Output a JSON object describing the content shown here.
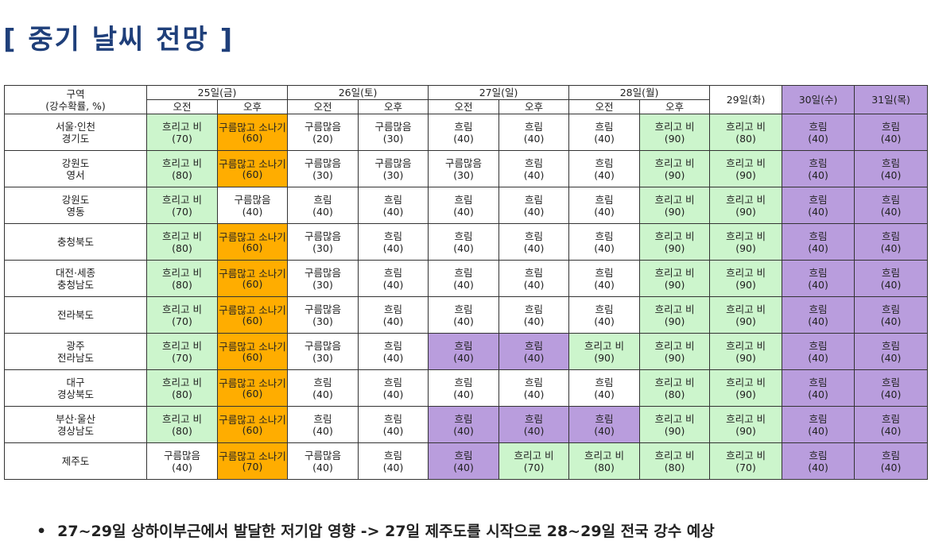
{
  "page_title": "[ 중기 날씨 전망 ]",
  "table": {
    "corner_label_line1": "구역",
    "corner_label_line2": "(강수확률, %)",
    "days": [
      {
        "label": "25일(금)",
        "split": true,
        "style": "white"
      },
      {
        "label": "26일(토)",
        "split": true,
        "style": "white"
      },
      {
        "label": "27일(일)",
        "split": true,
        "style": "white"
      },
      {
        "label": "28일(월)",
        "split": true,
        "style": "white"
      },
      {
        "label": "29일(화)",
        "split": false,
        "style": "white"
      },
      {
        "label": "30일(수)",
        "split": false,
        "style": "purple"
      },
      {
        "label": "31일(목)",
        "split": false,
        "style": "purple"
      }
    ],
    "am_label": "오전",
    "pm_label": "오후",
    "rows": [
      {
        "region": [
          "서울·인천",
          "경기도"
        ],
        "cells": [
          {
            "t": "흐리고 비",
            "p": "(70)",
            "c": "green"
          },
          {
            "t": "구름많고 소나기",
            "p": "(60)",
            "c": "orange"
          },
          {
            "t": "구름많음",
            "p": "(20)",
            "c": "white"
          },
          {
            "t": "구름많음",
            "p": "(30)",
            "c": "white"
          },
          {
            "t": "흐림",
            "p": "(40)",
            "c": "white"
          },
          {
            "t": "흐림",
            "p": "(40)",
            "c": "white"
          },
          {
            "t": "흐림",
            "p": "(40)",
            "c": "white"
          },
          {
            "t": "흐리고 비",
            "p": "(90)",
            "c": "green"
          },
          {
            "t": "흐리고 비",
            "p": "(80)",
            "c": "green"
          },
          {
            "t": "흐림",
            "p": "(40)",
            "c": "purple"
          },
          {
            "t": "흐림",
            "p": "(40)",
            "c": "purple"
          }
        ]
      },
      {
        "region": [
          "강원도",
          "영서"
        ],
        "cells": [
          {
            "t": "흐리고 비",
            "p": "(80)",
            "c": "green"
          },
          {
            "t": "구름많고 소나기",
            "p": "(60)",
            "c": "orange"
          },
          {
            "t": "구름많음",
            "p": "(30)",
            "c": "white"
          },
          {
            "t": "구름많음",
            "p": "(30)",
            "c": "white"
          },
          {
            "t": "구름많음",
            "p": "(30)",
            "c": "white"
          },
          {
            "t": "흐림",
            "p": "(40)",
            "c": "white"
          },
          {
            "t": "흐림",
            "p": "(40)",
            "c": "white"
          },
          {
            "t": "흐리고 비",
            "p": "(90)",
            "c": "green"
          },
          {
            "t": "흐리고 비",
            "p": "(90)",
            "c": "green"
          },
          {
            "t": "흐림",
            "p": "(40)",
            "c": "purple"
          },
          {
            "t": "흐림",
            "p": "(40)",
            "c": "purple"
          }
        ]
      },
      {
        "region": [
          "강원도",
          "영동"
        ],
        "cells": [
          {
            "t": "흐리고 비",
            "p": "(70)",
            "c": "green"
          },
          {
            "t": "구름많음",
            "p": "(40)",
            "c": "white"
          },
          {
            "t": "흐림",
            "p": "(40)",
            "c": "white"
          },
          {
            "t": "흐림",
            "p": "(40)",
            "c": "white"
          },
          {
            "t": "흐림",
            "p": "(40)",
            "c": "white"
          },
          {
            "t": "흐림",
            "p": "(40)",
            "c": "white"
          },
          {
            "t": "흐림",
            "p": "(40)",
            "c": "white"
          },
          {
            "t": "흐리고 비",
            "p": "(90)",
            "c": "green"
          },
          {
            "t": "흐리고 비",
            "p": "(90)",
            "c": "green"
          },
          {
            "t": "흐림",
            "p": "(40)",
            "c": "purple"
          },
          {
            "t": "흐림",
            "p": "(40)",
            "c": "purple"
          }
        ]
      },
      {
        "region": [
          "충청북도"
        ],
        "cells": [
          {
            "t": "흐리고 비",
            "p": "(80)",
            "c": "green"
          },
          {
            "t": "구름많고 소나기",
            "p": "(60)",
            "c": "orange"
          },
          {
            "t": "구름많음",
            "p": "(30)",
            "c": "white"
          },
          {
            "t": "흐림",
            "p": "(40)",
            "c": "white"
          },
          {
            "t": "흐림",
            "p": "(40)",
            "c": "white"
          },
          {
            "t": "흐림",
            "p": "(40)",
            "c": "white"
          },
          {
            "t": "흐림",
            "p": "(40)",
            "c": "white"
          },
          {
            "t": "흐리고 비",
            "p": "(90)",
            "c": "green"
          },
          {
            "t": "흐리고 비",
            "p": "(90)",
            "c": "green"
          },
          {
            "t": "흐림",
            "p": "(40)",
            "c": "purple"
          },
          {
            "t": "흐림",
            "p": "(40)",
            "c": "purple"
          }
        ]
      },
      {
        "region": [
          "대전·세종",
          "충청남도"
        ],
        "cells": [
          {
            "t": "흐리고 비",
            "p": "(80)",
            "c": "green"
          },
          {
            "t": "구름많고 소나기",
            "p": "(60)",
            "c": "orange"
          },
          {
            "t": "구름많음",
            "p": "(30)",
            "c": "white"
          },
          {
            "t": "흐림",
            "p": "(40)",
            "c": "white"
          },
          {
            "t": "흐림",
            "p": "(40)",
            "c": "white"
          },
          {
            "t": "흐림",
            "p": "(40)",
            "c": "white"
          },
          {
            "t": "흐림",
            "p": "(40)",
            "c": "white"
          },
          {
            "t": "흐리고 비",
            "p": "(90)",
            "c": "green"
          },
          {
            "t": "흐리고 비",
            "p": "(90)",
            "c": "green"
          },
          {
            "t": "흐림",
            "p": "(40)",
            "c": "purple"
          },
          {
            "t": "흐림",
            "p": "(40)",
            "c": "purple"
          }
        ]
      },
      {
        "region": [
          "전라북도"
        ],
        "cells": [
          {
            "t": "흐리고 비",
            "p": "(70)",
            "c": "green"
          },
          {
            "t": "구름많고 소나기",
            "p": "(60)",
            "c": "orange"
          },
          {
            "t": "구름많음",
            "p": "(30)",
            "c": "white"
          },
          {
            "t": "흐림",
            "p": "(40)",
            "c": "white"
          },
          {
            "t": "흐림",
            "p": "(40)",
            "c": "white"
          },
          {
            "t": "흐림",
            "p": "(40)",
            "c": "white"
          },
          {
            "t": "흐림",
            "p": "(40)",
            "c": "white"
          },
          {
            "t": "흐리고 비",
            "p": "(90)",
            "c": "green"
          },
          {
            "t": "흐리고 비",
            "p": "(90)",
            "c": "green"
          },
          {
            "t": "흐림",
            "p": "(40)",
            "c": "purple"
          },
          {
            "t": "흐림",
            "p": "(40)",
            "c": "purple"
          }
        ]
      },
      {
        "region": [
          "광주",
          "전라남도"
        ],
        "cells": [
          {
            "t": "흐리고 비",
            "p": "(70)",
            "c": "green"
          },
          {
            "t": "구름많고 소나기",
            "p": "(60)",
            "c": "orange"
          },
          {
            "t": "구름많음",
            "p": "(30)",
            "c": "white"
          },
          {
            "t": "흐림",
            "p": "(40)",
            "c": "white"
          },
          {
            "t": "흐림",
            "p": "(40)",
            "c": "purple"
          },
          {
            "t": "흐림",
            "p": "(40)",
            "c": "purple"
          },
          {
            "t": "흐리고 비",
            "p": "(90)",
            "c": "green"
          },
          {
            "t": "흐리고 비",
            "p": "(90)",
            "c": "green"
          },
          {
            "t": "흐리고 비",
            "p": "(90)",
            "c": "green"
          },
          {
            "t": "흐림",
            "p": "(40)",
            "c": "purple"
          },
          {
            "t": "흐림",
            "p": "(40)",
            "c": "purple"
          }
        ]
      },
      {
        "region": [
          "대구",
          "경상북도"
        ],
        "cells": [
          {
            "t": "흐리고 비",
            "p": "(80)",
            "c": "green"
          },
          {
            "t": "구름많고 소나기",
            "p": "(60)",
            "c": "orange"
          },
          {
            "t": "흐림",
            "p": "(40)",
            "c": "white"
          },
          {
            "t": "흐림",
            "p": "(40)",
            "c": "white"
          },
          {
            "t": "흐림",
            "p": "(40)",
            "c": "white"
          },
          {
            "t": "흐림",
            "p": "(40)",
            "c": "white"
          },
          {
            "t": "흐림",
            "p": "(40)",
            "c": "white"
          },
          {
            "t": "흐리고 비",
            "p": "(80)",
            "c": "green"
          },
          {
            "t": "흐리고 비",
            "p": "(90)",
            "c": "green"
          },
          {
            "t": "흐림",
            "p": "(40)",
            "c": "purple"
          },
          {
            "t": "흐림",
            "p": "(40)",
            "c": "purple"
          }
        ]
      },
      {
        "region": [
          "부산·울산",
          "경상남도"
        ],
        "cells": [
          {
            "t": "흐리고 비",
            "p": "(80)",
            "c": "green"
          },
          {
            "t": "구름많고 소나기",
            "p": "(60)",
            "c": "orange"
          },
          {
            "t": "흐림",
            "p": "(40)",
            "c": "white"
          },
          {
            "t": "흐림",
            "p": "(40)",
            "c": "white"
          },
          {
            "t": "흐림",
            "p": "(40)",
            "c": "purple"
          },
          {
            "t": "흐림",
            "p": "(40)",
            "c": "purple"
          },
          {
            "t": "흐림",
            "p": "(40)",
            "c": "purple"
          },
          {
            "t": "흐리고 비",
            "p": "(90)",
            "c": "green"
          },
          {
            "t": "흐리고 비",
            "p": "(90)",
            "c": "green"
          },
          {
            "t": "흐림",
            "p": "(40)",
            "c": "purple"
          },
          {
            "t": "흐림",
            "p": "(40)",
            "c": "purple"
          }
        ]
      },
      {
        "region": [
          "제주도"
        ],
        "cells": [
          {
            "t": "구름많음",
            "p": "(40)",
            "c": "white"
          },
          {
            "t": "구름많고 소나기",
            "p": "(70)",
            "c": "orange"
          },
          {
            "t": "구름많음",
            "p": "(40)",
            "c": "white"
          },
          {
            "t": "흐림",
            "p": "(40)",
            "c": "white"
          },
          {
            "t": "흐림",
            "p": "(40)",
            "c": "purple"
          },
          {
            "t": "흐리고 비",
            "p": "(70)",
            "c": "green"
          },
          {
            "t": "흐리고 비",
            "p": "(80)",
            "c": "green"
          },
          {
            "t": "흐리고 비",
            "p": "(80)",
            "c": "green"
          },
          {
            "t": "흐리고 비",
            "p": "(70)",
            "c": "green"
          },
          {
            "t": "흐림",
            "p": "(40)",
            "c": "purple"
          },
          {
            "t": "흐림",
            "p": "(40)",
            "c": "purple"
          }
        ]
      }
    ]
  },
  "colors": {
    "title": "#1f3f7a",
    "green": "#ccf5cc",
    "orange": "#ffad00",
    "purple": "#b99ddd"
  },
  "footnote": {
    "bullet": "•",
    "text": "27~29일 상하이부근에서 발달한 저기압 영향 -> 27일 제주도를 시작으로 28~29일 전국 강수 예상"
  }
}
